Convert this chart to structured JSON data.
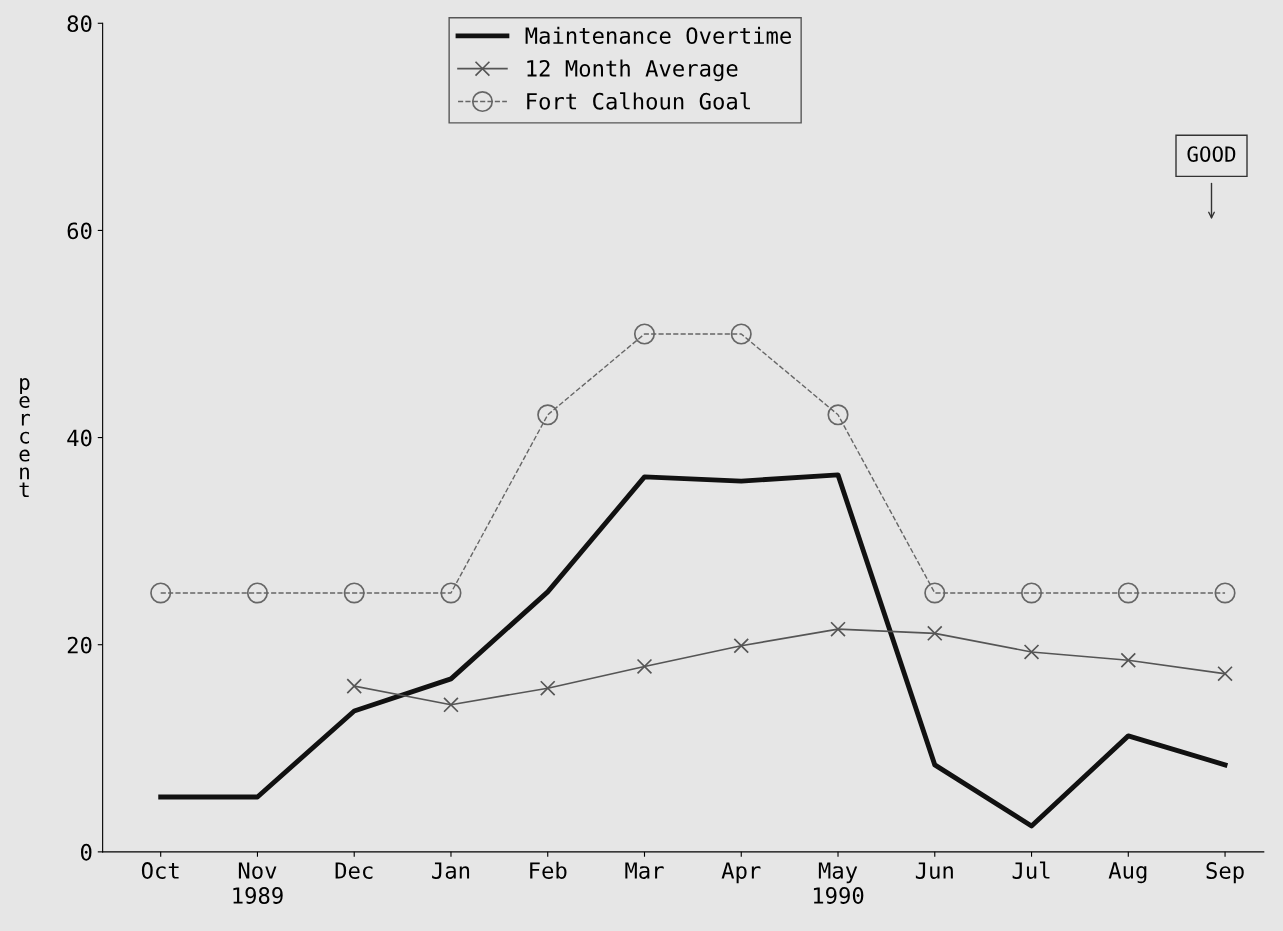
{
  "chart_data": {
    "type": "line",
    "categories": [
      "Oct",
      "Nov\n1989",
      "Dec",
      "Jan",
      "Feb",
      "Mar",
      "Apr",
      "May\n1990",
      "Jun",
      "Jul",
      "Aug",
      "Sep"
    ],
    "ylabel": "percent",
    "ylim": [
      0,
      80
    ],
    "yticks": [
      0,
      20,
      40,
      60,
      80
    ],
    "grid": false,
    "legend": "top",
    "series": [
      {
        "name": "Maintenance Overtime",
        "color": "#111111",
        "marker": "none",
        "line_style": "solid",
        "values": [
          5.3,
          5.3,
          13.6,
          16.7,
          25.1,
          36.2,
          35.8,
          36.4,
          8.4,
          2.5,
          11.2,
          8.4
        ]
      },
      {
        "name": "12 Month Average",
        "color": "#555555",
        "marker": "cross",
        "line_style": "solid",
        "values": [
          null,
          null,
          16.0,
          14.2,
          15.8,
          17.9,
          19.9,
          21.5,
          21.1,
          19.3,
          18.5,
          17.2
        ]
      },
      {
        "name": "Fort Calhoun Goal",
        "color": "#666666",
        "marker": "circle",
        "line_style": "dashed",
        "values": [
          25,
          25,
          25,
          25,
          42.2,
          50,
          50,
          42.2,
          25,
          25,
          25,
          25
        ]
      }
    ],
    "annotations": [
      "GOOD"
    ]
  }
}
